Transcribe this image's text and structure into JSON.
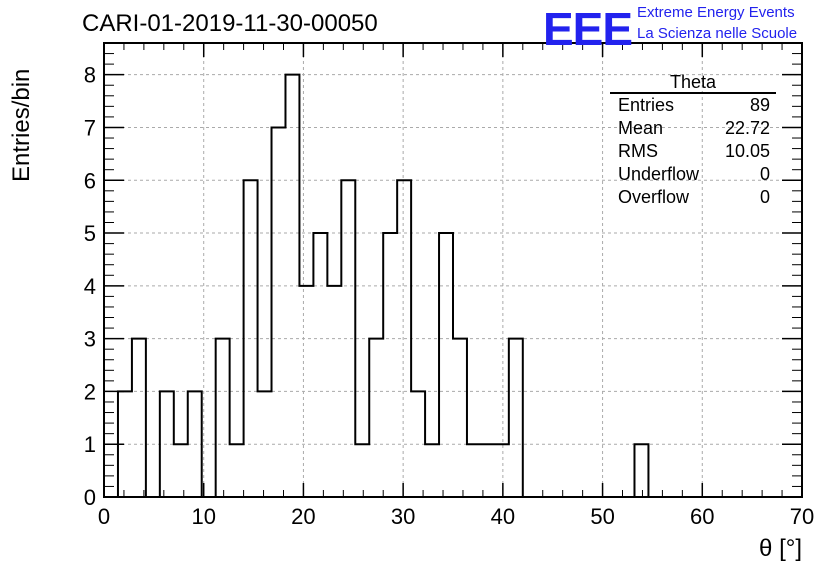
{
  "header": {
    "title": "CARI-01-2019-11-30-00050",
    "logo_text": "EEE",
    "logo_line1": "Extreme Energy Events",
    "logo_line2": "La Scienza nelle Scuole"
  },
  "stats_box": {
    "title": "Theta",
    "rows": [
      {
        "label": "Entries",
        "value": "89"
      },
      {
        "label": "Mean",
        "value": "22.72"
      },
      {
        "label": "RMS",
        "value": "10.05"
      },
      {
        "label": "Underflow",
        "value": "0"
      },
      {
        "label": "Overflow",
        "value": "0"
      }
    ]
  },
  "colors": {
    "accent": "#2222ee",
    "line": "#000000",
    "grid": "#aaaaaa"
  },
  "chart_data": {
    "type": "bar",
    "title": "CARI-01-2019-11-30-00050",
    "xlabel": "θ [°]",
    "ylabel": "Entries/bin",
    "xlim": [
      0,
      70
    ],
    "ylim": [
      0,
      8.6
    ],
    "bin_width": 1.4,
    "x_ticks": [
      0,
      10,
      20,
      30,
      40,
      50,
      60,
      70
    ],
    "y_ticks": [
      0,
      1,
      2,
      3,
      4,
      5,
      6,
      7,
      8
    ],
    "grid": true,
    "bin_edges": [
      1.4,
      2.8,
      4.2,
      5.6,
      7.0,
      8.4,
      9.8,
      11.2,
      12.6,
      14.0,
      15.4,
      16.8,
      18.2,
      19.6,
      21.0,
      22.4,
      23.8,
      25.2,
      26.6,
      28.0,
      29.4,
      30.8,
      32.2,
      33.6,
      35.0,
      36.4,
      37.8,
      39.2,
      40.6,
      42.0,
      43.4,
      44.8,
      46.2,
      47.6,
      49.0,
      50.4,
      51.8,
      53.2,
      54.6
    ],
    "values": [
      2,
      3,
      0,
      2,
      1,
      2,
      0,
      3,
      1,
      6,
      2,
      7,
      8,
      4,
      5,
      4,
      6,
      1,
      3,
      5,
      6,
      2,
      1,
      5,
      3,
      1,
      1,
      1,
      3,
      0,
      0,
      0,
      0,
      0,
      0,
      0,
      0,
      1
    ]
  }
}
